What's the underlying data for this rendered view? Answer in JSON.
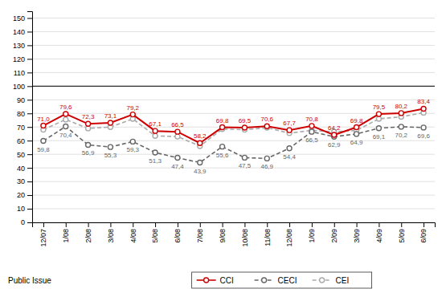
{
  "chart_data": {
    "type": "line",
    "categories": [
      "12/07",
      "1/08",
      "2/08",
      "3/08",
      "4/08",
      "5/08",
      "6/08",
      "7/08",
      "9/08",
      "10/08",
      "11/08",
      "12/08",
      "1/09",
      "2/09",
      "3/09",
      "4/09",
      "5/09",
      "6/09"
    ],
    "series": [
      {
        "name": "CCI",
        "color": "#cc0000",
        "marker": "circle",
        "line_style": "solid",
        "data_labels": true,
        "values": [
          71.0,
          79.6,
          72.3,
          73.1,
          79.2,
          67.1,
          66.5,
          58.2,
          69.8,
          69.5,
          70.6,
          67.7,
          70.8,
          64.2,
          69.8,
          79.5,
          80.2,
          83.4
        ],
        "value_labels": [
          "71,0",
          "79,6",
          "72,3",
          "73,1",
          "79,2",
          "67,1",
          "66,5",
          "58,2",
          "69,8",
          "69,5",
          "70,6",
          "67,7",
          "70,8",
          "64,2",
          "69,8",
          "79,5",
          "80,2",
          "83,4"
        ]
      },
      {
        "name": "CECI",
        "color": "#666666",
        "marker": "circle",
        "line_style": "dashed",
        "data_labels": true,
        "values": [
          59.8,
          70.4,
          56.9,
          55.3,
          59.3,
          51.3,
          47.4,
          43.9,
          55.6,
          47.5,
          46.9,
          54.4,
          66.5,
          62.9,
          64.9,
          69.1,
          70.2,
          69.6
        ],
        "value_labels": [
          "59,8",
          "70,4",
          "56,9",
          "55,3",
          "59,3",
          "51,3",
          "47,4",
          "43,9",
          "55,6",
          "47,5",
          "46,9",
          "54,4",
          "66,5",
          "62,9",
          "64,9",
          "69,1",
          "70,2",
          "69,6"
        ]
      },
      {
        "name": "CEI",
        "color": "#aaaaaa",
        "marker": "circle",
        "line_style": "dashed",
        "values": [
          68.0,
          75.5,
          69.0,
          70.0,
          76.0,
          63.5,
          63.0,
          56.0,
          68.5,
          68.0,
          69.5,
          65.5,
          67.5,
          66.5,
          67.5,
          76.0,
          77.5,
          80.5
        ]
      }
    ],
    "reference_line": 100,
    "ylim": [
      0,
      155
    ],
    "yticks": [
      0,
      10,
      20,
      30,
      40,
      50,
      60,
      70,
      80,
      90,
      100,
      110,
      120,
      130,
      140,
      150
    ],
    "grid": true,
    "legend": "bottom",
    "footer": "Public Issue"
  }
}
